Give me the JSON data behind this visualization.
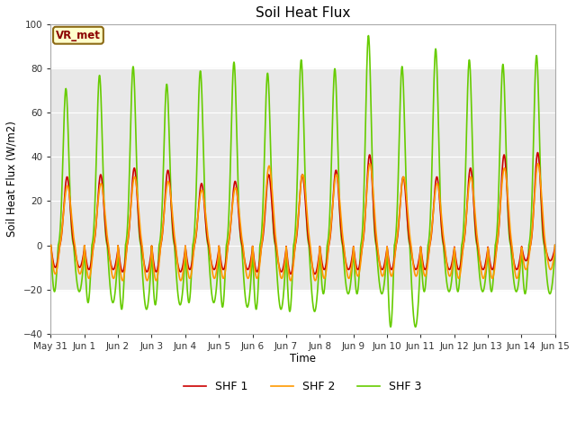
{
  "title": "Soil Heat Flux",
  "ylabel": "Soil Heat Flux (W/m2)",
  "xlabel": "Time",
  "ylim": [
    -40,
    100
  ],
  "yticks": [
    -40,
    -20,
    0,
    20,
    40,
    60,
    80,
    100
  ],
  "shaded_band": [
    -20,
    80
  ],
  "line_colors": {
    "SHF 1": "#cc0000",
    "SHF 2": "#ff9900",
    "SHF 3": "#66cc00"
  },
  "line_widths": {
    "SHF 1": 1.2,
    "SHF 2": 1.2,
    "SHF 3": 1.2
  },
  "background_color": "#ffffff",
  "shaded_color": "#e8e8e8",
  "legend_label": "VR_met",
  "x_tick_labels": [
    "May 31",
    "Jun 1",
    "Jun 2",
    "Jun 3",
    "Jun 4",
    "Jun 5",
    "Jun 6",
    "Jun 7",
    "Jun 8",
    "Jun 9",
    "Jun 10",
    "Jun 11",
    "Jun 12",
    "Jun 13",
    "Jun 14",
    "Jun 15"
  ],
  "num_days": 15,
  "points_per_day": 144
}
